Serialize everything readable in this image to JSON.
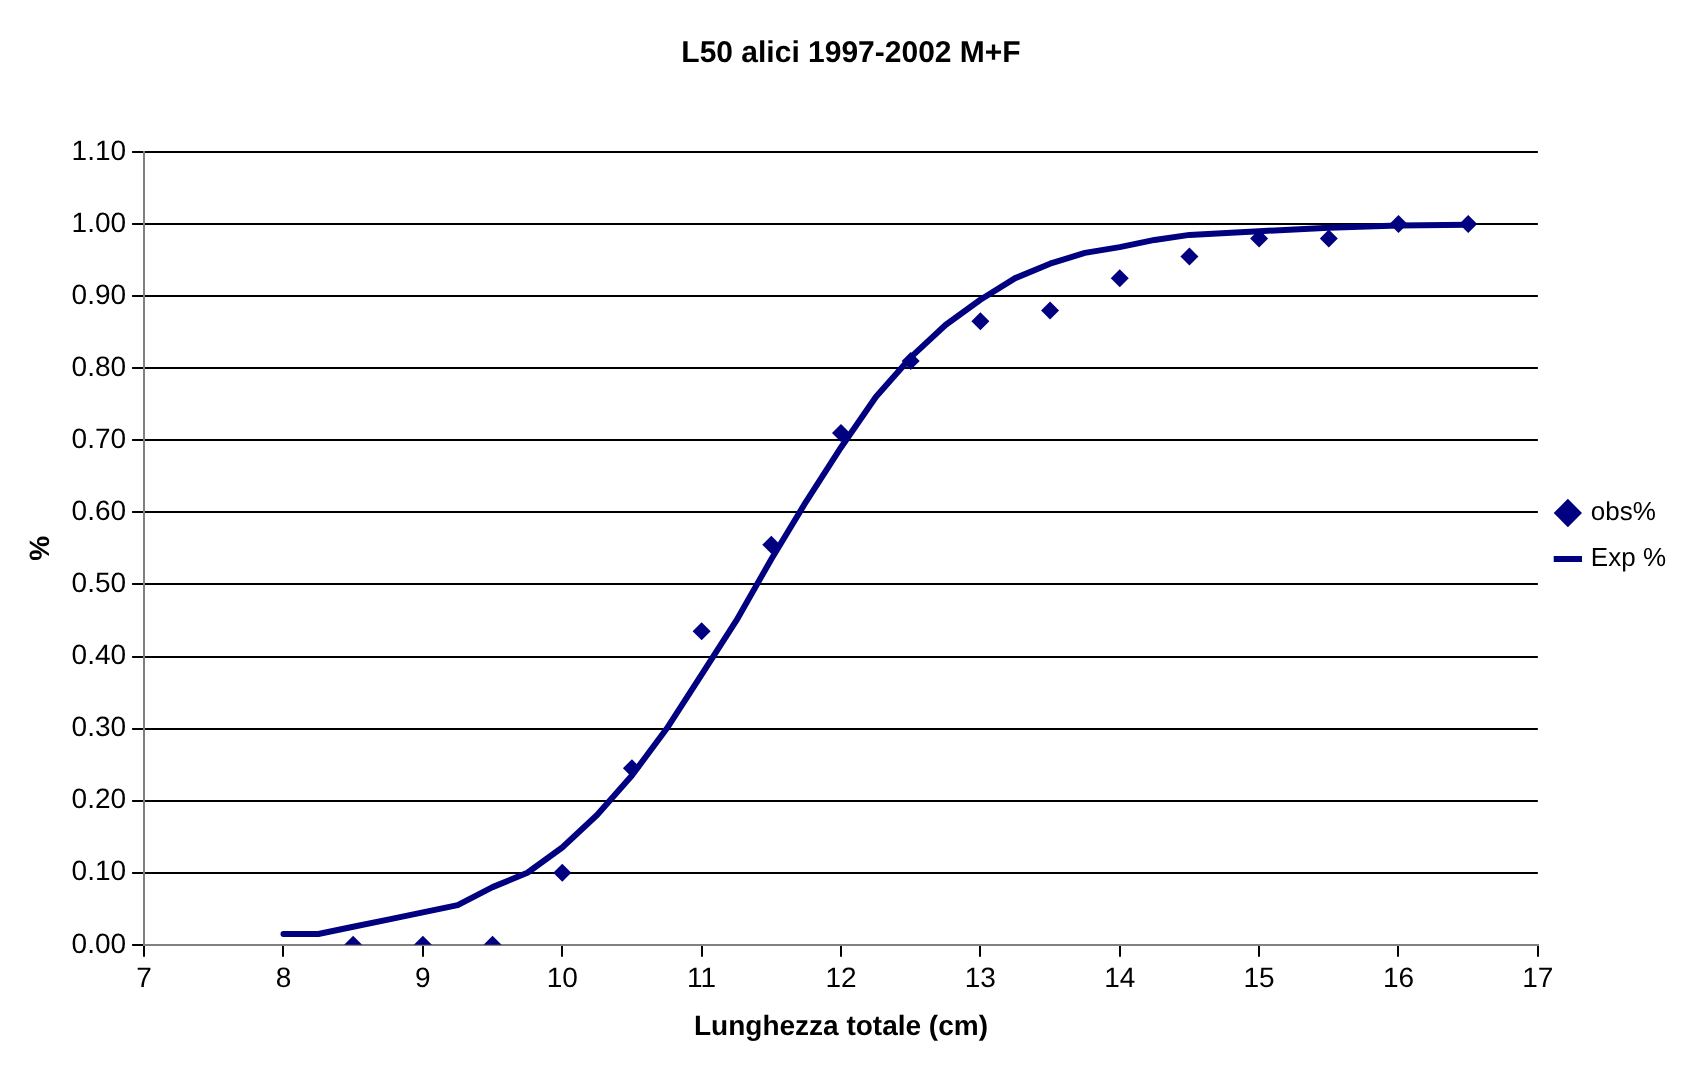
{
  "chart_data": {
    "type": "scatter",
    "title": "L50 alici 1997-2002 M+F",
    "xlabel": "Lunghezza totale (cm)",
    "ylabel": "%",
    "xlim": [
      7,
      17
    ],
    "xticks": [
      7,
      8,
      9,
      10,
      11,
      12,
      13,
      14,
      15,
      16,
      17
    ],
    "ylim": [
      0,
      1.1
    ],
    "yticks": [
      {
        "value": 0,
        "label": "0.00"
      },
      {
        "value": 0.1,
        "label": "0.10"
      },
      {
        "value": 0.2,
        "label": "0.20"
      },
      {
        "value": 0.3,
        "label": "0.30"
      },
      {
        "value": 0.4,
        "label": "0.40"
      },
      {
        "value": 0.5,
        "label": "0.50"
      },
      {
        "value": 0.6,
        "label": "0.60"
      },
      {
        "value": 0.7,
        "label": "0.70"
      },
      {
        "value": 0.8,
        "label": "0.80"
      },
      {
        "value": 0.9,
        "label": "0.90"
      },
      {
        "value": 1,
        "label": "1.00"
      },
      {
        "value": 1.1,
        "label": "1.10"
      }
    ],
    "grid": "y",
    "legend": "right",
    "series": [
      {
        "name": "obs%",
        "marker": "diamond",
        "color": "#000080",
        "x": [
          8.5,
          9,
          9.5,
          10,
          10.5,
          11,
          11.5,
          12,
          12.5,
          13,
          13.5,
          14,
          14.5,
          15,
          15.5,
          16,
          16.5
        ],
        "values": [
          0,
          0,
          0,
          0.1,
          0.245,
          0.435,
          0.555,
          0.71,
          0.81,
          0.865,
          0.88,
          0.925,
          0.955,
          0.98,
          0.98,
          1.0,
          1.0
        ]
      },
      {
        "name": "Exp %",
        "type": "line",
        "marker": "none",
        "line_style": "solid",
        "color": "#000080",
        "x": [
          8,
          8.25,
          8.5,
          8.75,
          9,
          9.25,
          9.5,
          9.75,
          10,
          10.25,
          10.5,
          10.75,
          11,
          11.25,
          11.5,
          11.75,
          12,
          12.25,
          12.5,
          12.75,
          13,
          13.25,
          13.5,
          13.75,
          14,
          14.25,
          14.5,
          15,
          15.5,
          16,
          16.5
        ],
        "values": [
          0.015,
          0.015,
          0.025,
          0.035,
          0.045,
          0.055,
          0.08,
          0.1,
          0.135,
          0.18,
          0.235,
          0.3,
          0.375,
          0.45,
          0.535,
          0.615,
          0.69,
          0.76,
          0.815,
          0.86,
          0.895,
          0.925,
          0.945,
          0.96,
          0.968,
          0.978,
          0.985,
          0.99,
          0.995,
          0.998,
          0.999
        ]
      }
    ]
  }
}
